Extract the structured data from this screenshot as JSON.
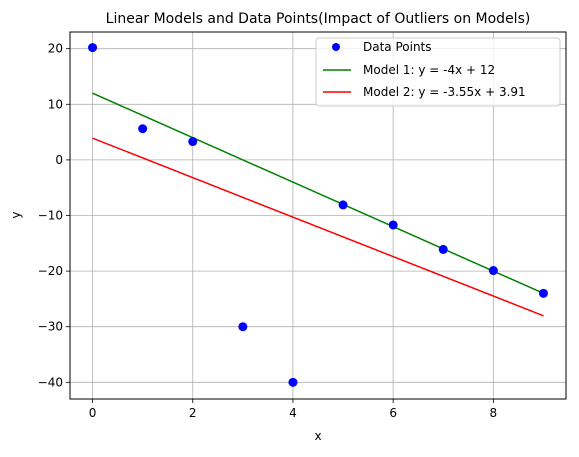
{
  "chart_data": {
    "type": "scatter",
    "title": "Linear Models and Data Points(Impact of Outliers on Models)",
    "xlabel": "x",
    "ylabel": "y",
    "xlim": [
      -0.45,
      9.45
    ],
    "ylim": [
      -43,
      23
    ],
    "grid": true,
    "legend_position": "top-right",
    "x_ticks": [
      0,
      2,
      4,
      6,
      8
    ],
    "y_ticks": [
      20,
      10,
      0,
      -10,
      -20,
      -30,
      -40
    ],
    "series": [
      {
        "name": "Data Points",
        "kind": "scatter",
        "color": "#0000ff",
        "x": [
          0,
          1,
          2,
          3,
          4,
          5,
          6,
          7,
          8,
          9
        ],
        "y": [
          20.2,
          5.6,
          3.3,
          -30,
          -40,
          -8.1,
          -11.7,
          -16.1,
          -19.9,
          -24
        ]
      },
      {
        "name": "Model 1: y = -4x + 12",
        "kind": "line",
        "color": "#008000",
        "x": [
          0,
          9
        ],
        "y": [
          12,
          -24
        ]
      },
      {
        "name": "Model 2: y = -3.55x + 3.91",
        "kind": "line",
        "color": "#ff0000",
        "x": [
          0,
          9
        ],
        "y": [
          3.91,
          -28.04
        ]
      }
    ]
  }
}
